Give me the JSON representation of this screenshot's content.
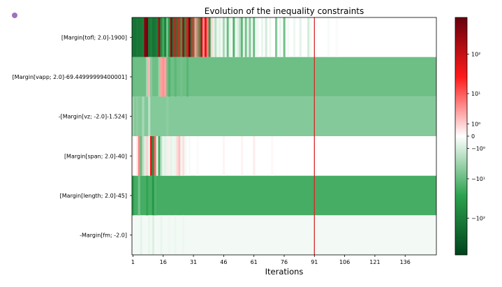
{
  "app": {
    "indicator_color": "#a070c0"
  },
  "chart_data": {
    "type": "heatmap",
    "title": "Evolution of the inequality constraints",
    "xlabel": "Iterations",
    "ylabel": "",
    "x_ticks": [
      "1",
      "16",
      "31",
      "46",
      "61",
      "76",
      "91",
      "106",
      "121",
      "136"
    ],
    "x_range": [
      1,
      151
    ],
    "rows": [
      "[Margin[tofl; 2.0]-1900]",
      "[Margin[vapp; 2.0]-69.44999999400001]",
      "-[Margin[vz; -2.0]-1.524]",
      "[Margin[span; 2.0]-40]",
      "[Margin[length; 2.0]-45]",
      "-Margin[fm; -2.0]"
    ],
    "marked_iteration": 91,
    "marker_color": "#d62728",
    "colorbar": {
      "scale": "symlog",
      "colors": {
        "negative_strong": "#00441b",
        "negative_mid": "#2ca24f",
        "zero": "#ffffff",
        "positive_mid": "#ff1a1a",
        "positive_strong": "#67000d"
      },
      "ticks": [
        "10^2",
        "10^1",
        "10^0",
        "0",
        "-10^0",
        "-10^1",
        "-10^2"
      ]
    },
    "cells": [
      {
        "row": 0,
        "x": 1,
        "v": -150
      },
      {
        "row": 0,
        "x": 2,
        "v": -150
      },
      {
        "row": 0,
        "x": 3,
        "v": -120
      },
      {
        "row": 0,
        "x": 4,
        "v": -140
      },
      {
        "row": 0,
        "x": 5,
        "v": -130
      },
      {
        "row": 0,
        "x": 6,
        "v": -100
      },
      {
        "row": 0,
        "x": 7,
        "v": 400
      },
      {
        "row": 0,
        "x": 8,
        "v": 600
      },
      {
        "row": 0,
        "x": 9,
        "v": -120
      },
      {
        "row": 0,
        "x": 10,
        "v": -90
      },
      {
        "row": 0,
        "x": 11,
        "v": -150
      },
      {
        "row": 0,
        "x": 12,
        "v": -130
      },
      {
        "row": 0,
        "x": 13,
        "v": -110
      },
      {
        "row": 0,
        "x": 14,
        "v": 200
      },
      {
        "row": 0,
        "x": 15,
        "v": -60
      },
      {
        "row": 0,
        "x": 16,
        "v": -20
      },
      {
        "row": 0,
        "x": 17,
        "v": -80
      },
      {
        "row": 0,
        "x": 18,
        "v": -8
      },
      {
        "row": 0,
        "x": 19,
        "v": -40
      },
      {
        "row": 0,
        "x": 20,
        "v": 300
      },
      {
        "row": 0,
        "x": 21,
        "v": -120
      },
      {
        "row": 0,
        "x": 22,
        "v": 50
      },
      {
        "row": 0,
        "x": 23,
        "v": -100
      },
      {
        "row": 0,
        "x": 24,
        "v": 30
      },
      {
        "row": 0,
        "x": 25,
        "v": -30
      },
      {
        "row": 0,
        "x": 26,
        "v": 200
      },
      {
        "row": 0,
        "x": 27,
        "v": -60
      },
      {
        "row": 0,
        "x": 28,
        "v": 40
      },
      {
        "row": 0,
        "x": 29,
        "v": 500
      },
      {
        "row": 0,
        "x": 30,
        "v": -80
      },
      {
        "row": 0,
        "x": 31,
        "v": 20
      },
      {
        "row": 0,
        "x": 32,
        "v": -5
      },
      {
        "row": 0,
        "x": 33,
        "v": 8
      },
      {
        "row": 0,
        "x": 34,
        "v": -30
      },
      {
        "row": 0,
        "x": 35,
        "v": 100
      },
      {
        "row": 0,
        "x": 36,
        "v": 5
      },
      {
        "row": 0,
        "x": 37,
        "v": 50
      },
      {
        "row": 0,
        "x": 38,
        "v": 6
      },
      {
        "row": 0,
        "x": 39,
        "v": -40
      },
      {
        "row": 0,
        "x": 40,
        "v": 1
      },
      {
        "row": 0,
        "x": 41,
        "v": -0.5
      },
      {
        "row": 0,
        "x": 42,
        "v": -2
      },
      {
        "row": 0,
        "x": 43,
        "v": -0.3
      },
      {
        "row": 0,
        "x": 44,
        "v": -0.6
      },
      {
        "row": 0,
        "x": 45,
        "v": -0.2
      },
      {
        "row": 0,
        "x": 46,
        "v": -3
      },
      {
        "row": 0,
        "x": 47,
        "v": -0.4
      },
      {
        "row": 0,
        "x": 48,
        "v": -10
      },
      {
        "row": 0,
        "x": 49,
        "v": -0.5
      },
      {
        "row": 0,
        "x": 50,
        "v": -0.2
      },
      {
        "row": 0,
        "x": 51,
        "v": -15
      },
      {
        "row": 0,
        "x": 52,
        "v": -0.3
      },
      {
        "row": 0,
        "x": 53,
        "v": -0.6
      },
      {
        "row": 0,
        "x": 54,
        "v": -2
      },
      {
        "row": 0,
        "x": 55,
        "v": -12
      },
      {
        "row": 0,
        "x": 56,
        "v": -0.3
      },
      {
        "row": 0,
        "x": 57,
        "v": -8
      },
      {
        "row": 0,
        "x": 58,
        "v": -0.5
      },
      {
        "row": 0,
        "x": 59,
        "v": -6
      },
      {
        "row": 0,
        "x": 60,
        "v": -0.2
      },
      {
        "row": 0,
        "x": 61,
        "v": -10
      },
      {
        "row": 0,
        "x": 62,
        "v": -0.3
      },
      {
        "row": 0,
        "x": 63,
        "v": -0.2
      },
      {
        "row": 0,
        "x": 65,
        "v": -0.4
      },
      {
        "row": 0,
        "x": 67,
        "v": -1
      },
      {
        "row": 0,
        "x": 69,
        "v": -0.3
      },
      {
        "row": 0,
        "x": 72,
        "v": -6
      },
      {
        "row": 0,
        "x": 74,
        "v": -0.4
      },
      {
        "row": 0,
        "x": 76,
        "v": -8
      },
      {
        "row": 0,
        "x": 78,
        "v": -0.2
      },
      {
        "row": 0,
        "x": 81,
        "v": -0.3
      },
      {
        "row": 0,
        "x": 84,
        "v": -0.5
      },
      {
        "row": 0,
        "x": 88,
        "v": -1
      },
      {
        "row": 0,
        "x": 89,
        "v": -0.2
      },
      {
        "row": 0,
        "x": 98,
        "v": -0.15
      },
      {
        "row": 0,
        "x": 102,
        "v": -0.1
      },
      {
        "row": 1,
        "x": 1,
        "v": -10
      },
      {
        "row": 1,
        "x": 8,
        "v": -3
      },
      {
        "row": 1,
        "x": 9,
        "v": 2
      },
      {
        "row": 1,
        "x": 10,
        "v": -6
      },
      {
        "row": 1,
        "x": 14,
        "v": -4
      },
      {
        "row": 1,
        "x": 15,
        "v": 3
      },
      {
        "row": 1,
        "x": 16,
        "v": 4
      },
      {
        "row": 1,
        "x": 17,
        "v": 3
      },
      {
        "row": 1,
        "x": 19,
        "v": -14
      },
      {
        "row": 1,
        "x": 22,
        "v": -12
      },
      {
        "row": 1,
        "x": 25,
        "v": -8
      },
      {
        "row": 1,
        "x": 28,
        "v": -13
      },
      {
        "row": 2,
        "x": 1,
        "v": -4
      },
      {
        "row": 2,
        "x": 3,
        "v": -5
      },
      {
        "row": 2,
        "x": 6,
        "v": -3
      },
      {
        "row": 2,
        "x": 9,
        "v": -2
      },
      {
        "row": 2,
        "x": 12,
        "v": -6
      },
      {
        "row": 2,
        "x": 18,
        "v": -5
      },
      {
        "row": 3,
        "x": 1,
        "v": 0.2
      },
      {
        "row": 3,
        "x": 3,
        "v": 0.3
      },
      {
        "row": 3,
        "x": 4,
        "v": 5
      },
      {
        "row": 3,
        "x": 5,
        "v": -10
      },
      {
        "row": 3,
        "x": 6,
        "v": -2
      },
      {
        "row": 3,
        "x": 7,
        "v": -0.8
      },
      {
        "row": 3,
        "x": 8,
        "v": 1
      },
      {
        "row": 3,
        "x": 9,
        "v": -0.5
      },
      {
        "row": 3,
        "x": 10,
        "v": 40
      },
      {
        "row": 3,
        "x": 11,
        "v": -50
      },
      {
        "row": 3,
        "x": 12,
        "v": 8
      },
      {
        "row": 3,
        "x": 13,
        "v": -0.6
      },
      {
        "row": 3,
        "x": 14,
        "v": -20
      },
      {
        "row": 3,
        "x": 15,
        "v": -2
      },
      {
        "row": 3,
        "x": 16,
        "v": -0.4
      },
      {
        "row": 3,
        "x": 17,
        "v": -0.6
      },
      {
        "row": 3,
        "x": 18,
        "v": -0.4
      },
      {
        "row": 3,
        "x": 19,
        "v": 0.3
      },
      {
        "row": 3,
        "x": 20,
        "v": -0.5
      },
      {
        "row": 3,
        "x": 21,
        "v": -0.3
      },
      {
        "row": 3,
        "x": 22,
        "v": -0.4
      },
      {
        "row": 3,
        "x": 23,
        "v": 0.8
      },
      {
        "row": 3,
        "x": 24,
        "v": 1.5
      },
      {
        "row": 3,
        "x": 25,
        "v": -0.3
      },
      {
        "row": 3,
        "x": 26,
        "v": 0.6
      },
      {
        "row": 3,
        "x": 27,
        "v": -0.2
      },
      {
        "row": 3,
        "x": 29,
        "v": -0.15
      },
      {
        "row": 3,
        "x": 33,
        "v": -0.1
      },
      {
        "row": 3,
        "x": 46,
        "v": 0.15
      },
      {
        "row": 3,
        "x": 55,
        "v": 0.2
      },
      {
        "row": 3,
        "x": 61,
        "v": 0.3
      },
      {
        "row": 3,
        "x": 70,
        "v": 0.1
      },
      {
        "row": 4,
        "x": 1,
        "v": -30
      },
      {
        "row": 4,
        "x": 4,
        "v": -8
      },
      {
        "row": 4,
        "x": 8,
        "v": -25
      },
      {
        "row": 4,
        "x": 11,
        "v": -40
      },
      {
        "row": 4,
        "x": 12,
        "v": -15
      },
      {
        "row": 5,
        "x": 5,
        "v": -0.5
      },
      {
        "row": 5,
        "x": 9,
        "v": -0.4
      },
      {
        "row": 5,
        "x": 11,
        "v": -0.7
      },
      {
        "row": 5,
        "x": 15,
        "v": -0.4
      },
      {
        "row": 5,
        "x": 19,
        "v": -0.3
      },
      {
        "row": 5,
        "x": 22,
        "v": -0.35
      },
      {
        "row": 5,
        "x": 26,
        "v": -0.3
      }
    ],
    "row_defaults": [
      0,
      -9,
      -6,
      0,
      -18,
      -0.2
    ],
    "row_defaults_after_marker": [
      0,
      -9,
      -6,
      0,
      -18,
      -0.2
    ]
  }
}
